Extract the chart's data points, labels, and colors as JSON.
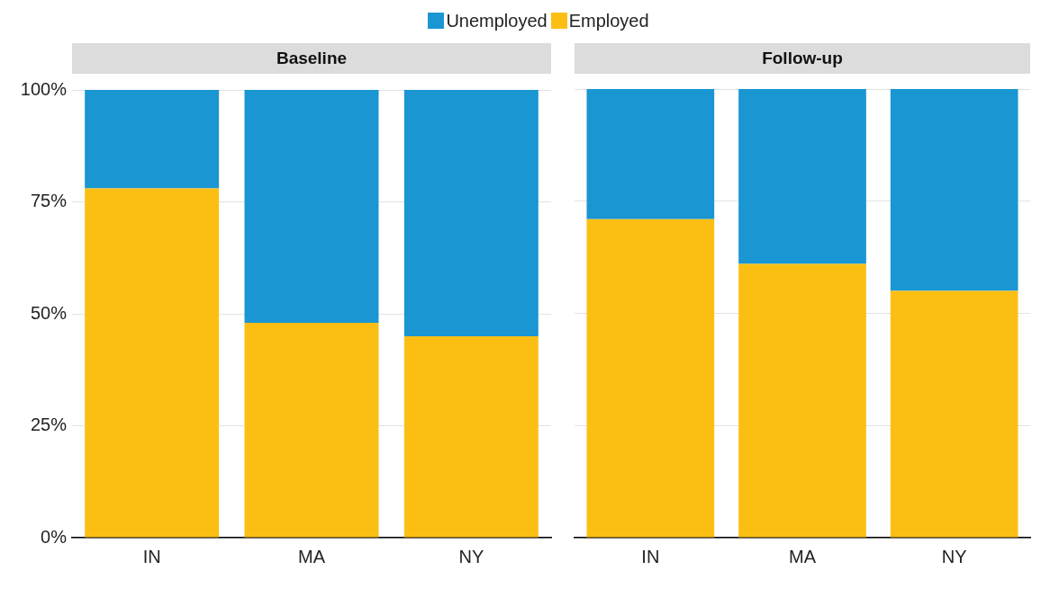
{
  "chart_data": [
    {
      "type": "bar",
      "title": "Baseline",
      "categories": [
        "IN",
        "MA",
        "NY"
      ],
      "stacked": true,
      "legend": "top",
      "grid": "y",
      "ylim": [
        0,
        100
      ],
      "yticks": [
        {
          "value": 0,
          "label": "0%"
        },
        {
          "value": 25,
          "label": "25%"
        },
        {
          "value": 50,
          "label": "50%"
        },
        {
          "value": 75,
          "label": "75%"
        },
        {
          "value": 100,
          "label": "100%"
        }
      ],
      "series": [
        {
          "name": "Employed",
          "color": "#fbbf14",
          "values": [
            78,
            48,
            45
          ]
        },
        {
          "name": "Unemployed",
          "color": "#1a96d3",
          "values": [
            22,
            52,
            55
          ]
        }
      ]
    },
    {
      "type": "bar",
      "title": "Follow-up",
      "categories": [
        "IN",
        "MA",
        "NY"
      ],
      "stacked": true,
      "grid": "y",
      "tick_labels": "x",
      "ylim": [
        0,
        100
      ],
      "yticks": [
        {
          "value": 0,
          "label": null
        },
        {
          "value": 25,
          "label": null
        },
        {
          "value": 50,
          "label": null
        },
        {
          "value": 75,
          "label": null
        },
        {
          "value": 100,
          "label": null
        }
      ],
      "series": [
        {
          "color": "#fbbf14",
          "values": [
            71,
            61,
            55
          ]
        },
        {
          "color": "#1a96d3",
          "values": [
            29,
            39,
            45
          ]
        }
      ]
    }
  ]
}
